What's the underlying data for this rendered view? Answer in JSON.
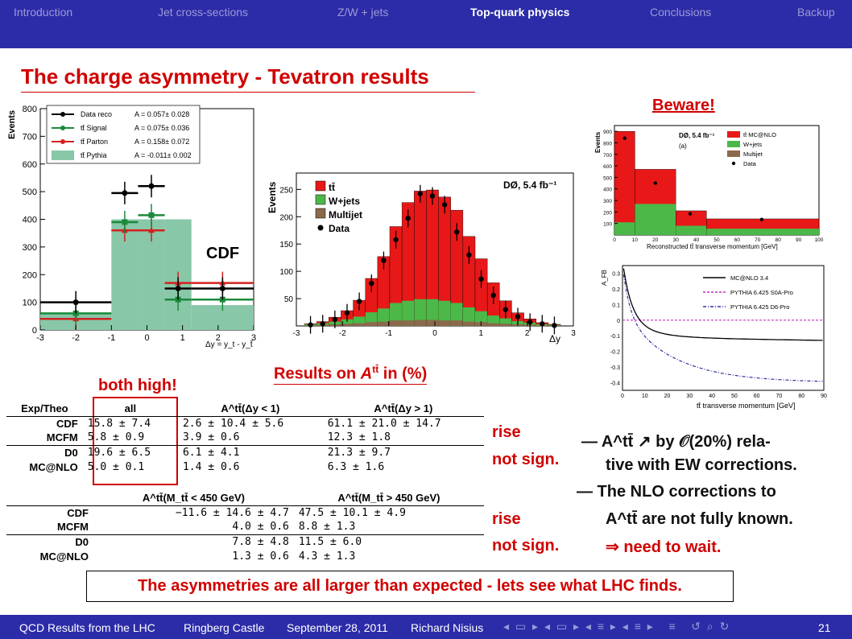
{
  "nav": [
    "Introduction",
    "Jet cross-sections",
    "Z/W + jets",
    "Top-quark physics",
    "Conclusions",
    "Backup"
  ],
  "title": "The charge asymmetry - Tevatron results",
  "beware": "Beware!",
  "cdf": {
    "ylabel": "Events",
    "xlabel": "Δy = y<sub>t</sub> - y<sub>t̄</sub>",
    "tag": "CDF",
    "xticks": [
      "-3",
      "-2",
      "-1",
      "0",
      "1",
      "2",
      "3"
    ],
    "yticks": [
      "0",
      "100",
      "200",
      "300",
      "400",
      "500",
      "600",
      "700",
      "800"
    ],
    "legend": [
      {
        "label": "Data reco",
        "value": "A = 0.057± 0.028",
        "color": "#000000"
      },
      {
        "label": "tt̄ Signal",
        "value": "A = 0.075± 0.036",
        "color": "#1a8a3a"
      },
      {
        "label": "tt̄ Parton",
        "value": "A = 0.158± 0.072",
        "color": "#d42020"
      },
      {
        "label": "tt̄ Pythia",
        "value": "A = -0.011± 0.002",
        "color": "#88c8a8"
      }
    ],
    "bins": [
      -3,
      -1,
      -0.25,
      0.5,
      1.25,
      3
    ],
    "pythia": [
      60,
      400,
      400,
      400,
      90
    ],
    "data": [
      100,
      495,
      520,
      150,
      150
    ],
    "signal": [
      60,
      390,
      415,
      110,
      110
    ],
    "parton": [
      40,
      360,
      360,
      170,
      170
    ]
  },
  "d0": {
    "ylabel": "Events",
    "xlabel": "Δy",
    "tag": "DØ, 5.4 fb⁻¹",
    "legend": [
      "tt̄",
      "W+jets",
      "Multijet",
      "Data"
    ],
    "colors": {
      "tt": "#e81818",
      "w": "#4cb848",
      "mj": "#8a6a4a"
    },
    "yticks": [
      "50",
      "100",
      "150",
      "200",
      "250"
    ],
    "xticks": [
      "-3",
      "-2",
      "-1",
      "0",
      "1",
      "2",
      "3"
    ]
  },
  "mass": {
    "ylabel": "Events",
    "xlabel": "Reconstructed tt̄ transverse momentum [GeV]",
    "tag": "DØ, 5.4 fb⁻¹",
    "sub": "(a)",
    "legend": [
      "tt̄ MC@NLO",
      "W+jets",
      "Multijet",
      "Data"
    ],
    "yticks": [
      "100",
      "200",
      "300",
      "400",
      "500",
      "600",
      "700",
      "800",
      "900"
    ],
    "xticks": [
      "0",
      "10",
      "20",
      "30",
      "40",
      "50",
      "60",
      "70",
      "80",
      "90",
      "100"
    ]
  },
  "afb": {
    "ylabel": "A_FB",
    "xlabel": "tt̄ transverse momentum [GeV]",
    "legend": [
      "MC@NLO 3.4",
      "PYTHIA 6.425 S0A-Pro",
      "PYTHIA 6.425 D6-Pro"
    ],
    "yticks": [
      "0.3",
      "0.2",
      "0.1",
      "0",
      "-0.1",
      "-0.2",
      "-0.3",
      "-0.4"
    ],
    "xticks": [
      "0",
      "10",
      "20",
      "30",
      "40",
      "50",
      "60",
      "70",
      "80",
      "90"
    ]
  },
  "results_head": "Results on A^tt̄ in (%)",
  "both_high": "both high!",
  "table1": {
    "headers": [
      "Exp/Theo",
      "all",
      "A^tt̄(Δy < 1)",
      "A^tt̄(Δy > 1)"
    ],
    "rows": [
      [
        "CDF",
        "15.8 ± 7.4",
        "2.6 ± 10.4 ± 5.6",
        "61.1 ± 21.0 ± 14.7"
      ],
      [
        "MCFM",
        "5.8 ± 0.9",
        "3.9 ±   0.6",
        "12.3 ±  1.8"
      ],
      [
        "D0",
        "19.6 ± 6.5",
        "6.1 ±  4.1",
        "21.3 ±  9.7"
      ],
      [
        "MC@NLO",
        "5.0 ± 0.1",
        "1.4 ±  0.6",
        "6.3 ±  1.6"
      ]
    ]
  },
  "table2": {
    "headers": [
      "",
      "A^tt̄(M_tt̄ < 450 GeV)",
      "A^tt̄(M_tt̄ > 450 GeV)"
    ],
    "rows": [
      [
        "CDF",
        "−11.6 ± 14.6 ± 4.7",
        "47.5 ± 10.1 ± 4.9"
      ],
      [
        "MCFM",
        "4.0 ±  0.6",
        "8.8 ±  1.3"
      ],
      [
        "D0",
        "7.8 ±  4.8",
        "11.5 ±  6.0"
      ],
      [
        "MC@NLO",
        "1.3 ±  0.6",
        "4.3 ±  1.3"
      ]
    ]
  },
  "tags1": [
    "rise",
    "not sign."
  ],
  "tags2": [
    "rise",
    "not sign."
  ],
  "notes": [
    "— A^tt̄ ↗ by 𝒪(20%) rela-",
    "tive with EW corrections.",
    "— The NLO corrections to",
    "A^tt̄ are not fully known.",
    "⇒ need to wait."
  ],
  "conclusion": "The asymmetries are all larger than expected - lets see what LHC finds.",
  "footer": {
    "talk": "QCD Results from the LHC",
    "place": "Ringberg Castle",
    "date": "September 28, 2011",
    "author": "Richard Nisius",
    "page": "21"
  }
}
